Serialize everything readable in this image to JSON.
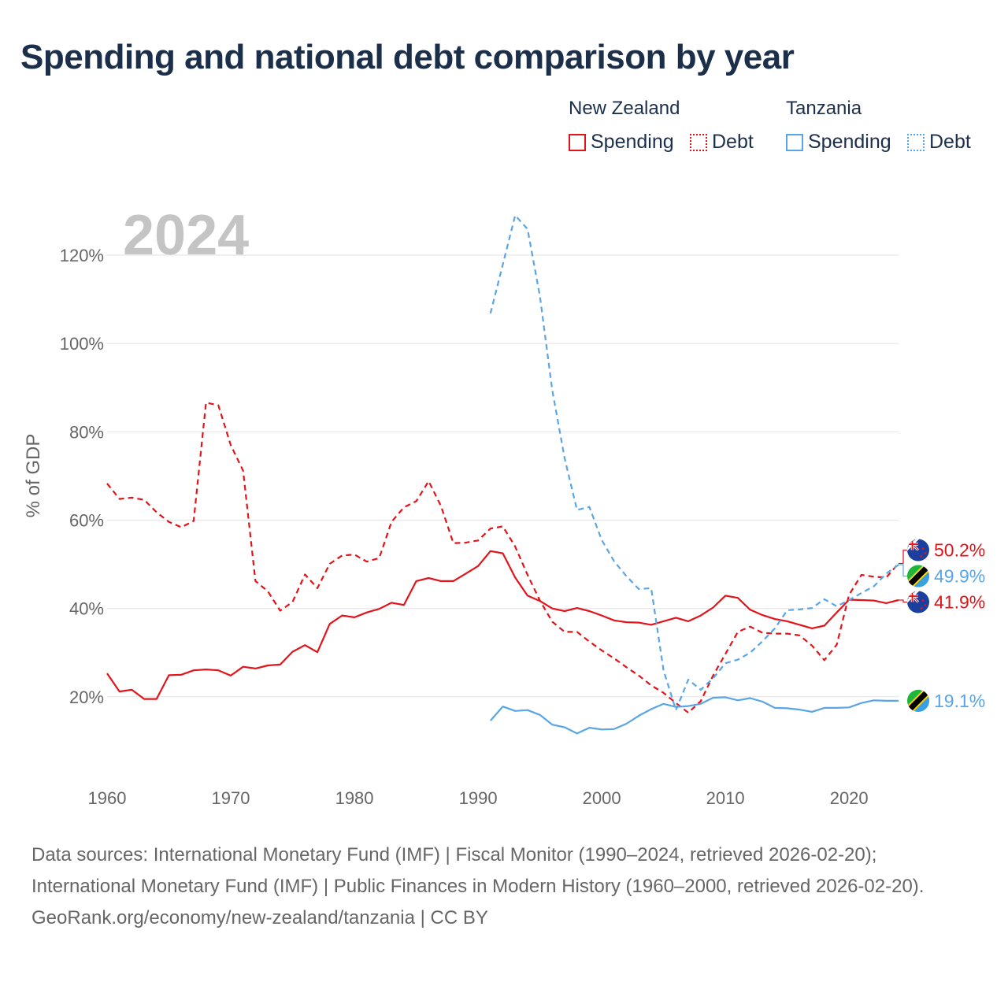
{
  "title": "Spending and national debt comparison by year",
  "legend": {
    "groups": [
      {
        "country": "New Zealand",
        "color": "#e3131a",
        "items": [
          {
            "label": "Spending",
            "style": "solid"
          },
          {
            "label": "Debt",
            "style": "dotted"
          }
        ]
      },
      {
        "country": "Tanzania",
        "color": "#5aa5e6",
        "items": [
          {
            "label": "Spending",
            "style": "solid"
          },
          {
            "label": "Debt",
            "style": "dotted"
          }
        ]
      }
    ]
  },
  "chart_data": {
    "type": "line",
    "year_label": "2024",
    "ylabel": "% of GDP",
    "xlim": [
      1960,
      2024
    ],
    "ylim": [
      0,
      130
    ],
    "x_ticks": [
      1960,
      1970,
      1980,
      1990,
      2000,
      2010,
      2020
    ],
    "y_ticks": [
      {
        "value": 20,
        "label": "20%"
      },
      {
        "value": 40,
        "label": "40%"
      },
      {
        "value": 60,
        "label": "60%"
      },
      {
        "value": 80,
        "label": "80%"
      },
      {
        "value": 100,
        "label": "100%"
      },
      {
        "value": 120,
        "label": "120%"
      }
    ],
    "series": [
      {
        "name": "New Zealand Spending",
        "color": "#e3131a",
        "dash": "solid",
        "x": [
          1960,
          1961,
          1962,
          1963,
          1964,
          1965,
          1966,
          1967,
          1968,
          1969,
          1970,
          1971,
          1972,
          1973,
          1974,
          1975,
          1976,
          1977,
          1978,
          1979,
          1980,
          1981,
          1982,
          1983,
          1984,
          1985,
          1986,
          1987,
          1988,
          1989,
          1990,
          1991,
          1992,
          1993,
          1994,
          1995,
          1996,
          1997,
          1998,
          1999,
          2000,
          2001,
          2002,
          2003,
          2004,
          2005,
          2006,
          2007,
          2008,
          2009,
          2010,
          2011,
          2012,
          2013,
          2014,
          2015,
          2016,
          2017,
          2018,
          2019,
          2020,
          2021,
          2022,
          2023,
          2024
        ],
        "values": [
          25.3,
          21.2,
          21.6,
          19.5,
          19.5,
          24.9,
          25.0,
          26.0,
          26.2,
          26.0,
          24.8,
          26.8,
          26.4,
          27.1,
          27.3,
          30.2,
          31.7,
          30.1,
          36.5,
          38.4,
          38.0,
          39.1,
          39.9,
          41.3,
          40.8,
          46.2,
          46.9,
          46.2,
          46.2,
          47.9,
          49.6,
          53.0,
          52.5,
          47.0,
          42.9,
          41.7,
          40.0,
          39.4,
          40.1,
          39.4,
          38.4,
          37.3,
          36.9,
          36.8,
          36.3,
          37.1,
          37.9,
          37.1,
          38.4,
          40.2,
          42.9,
          42.4,
          39.7,
          38.5,
          37.6,
          37.1,
          36.3,
          35.5,
          36.1,
          39.1,
          42.0,
          41.9,
          41.8,
          41.2,
          41.9
        ],
        "end_label": "41.9%",
        "flag": "nz"
      },
      {
        "name": "New Zealand Debt",
        "color": "#e3131a",
        "dash": "dashed",
        "x": [
          1960,
          1961,
          1962,
          1963,
          1964,
          1965,
          1966,
          1967,
          1968,
          1969,
          1970,
          1971,
          1972,
          1973,
          1974,
          1975,
          1976,
          1977,
          1978,
          1979,
          1980,
          1981,
          1982,
          1983,
          1984,
          1985,
          1986,
          1987,
          1988,
          1989,
          1990,
          1991,
          1992,
          1993,
          1994,
          1995,
          1996,
          1997,
          1998,
          1999,
          2000,
          2001,
          2002,
          2003,
          2004,
          2005,
          2006,
          2007,
          2008,
          2009,
          2010,
          2011,
          2012,
          2013,
          2014,
          2015,
          2016,
          2017,
          2018,
          2019,
          2020,
          2021,
          2022,
          2023,
          2024
        ],
        "values": [
          68.3,
          64.8,
          65.1,
          64.6,
          61.8,
          59.6,
          58.4,
          59.8,
          86.6,
          86.0,
          77.0,
          71.2,
          46.2,
          43.9,
          39.5,
          41.5,
          47.7,
          44.6,
          50.1,
          52.0,
          52.2,
          50.6,
          51.4,
          59.6,
          62.9,
          64.3,
          68.8,
          63.2,
          54.8,
          54.9,
          55.4,
          58.1,
          58.6,
          54.0,
          47.6,
          41.8,
          37.0,
          34.7,
          34.7,
          32.5,
          30.5,
          28.7,
          26.7,
          24.8,
          22.6,
          20.9,
          18.6,
          16.4,
          19.0,
          24.8,
          29.7,
          34.7,
          35.9,
          34.5,
          34.3,
          34.3,
          33.9,
          31.6,
          28.3,
          31.8,
          43.1,
          47.6,
          47.2,
          47.0,
          50.2
        ],
        "end_label": "50.2%",
        "flag": "nz"
      },
      {
        "name": "Tanzania Debt",
        "color": "#5aa5e6",
        "dash": "dashed",
        "x": [
          1991,
          1992,
          1993,
          1994,
          1995,
          1996,
          1997,
          1998,
          1999,
          2000,
          2001,
          2002,
          2003,
          2004,
          2005,
          2006,
          2007,
          2008,
          2009,
          2010,
          2011,
          2012,
          2013,
          2014,
          2015,
          2016,
          2017,
          2018,
          2019,
          2020,
          2021,
          2022,
          2023,
          2024
        ],
        "values": [
          106.8,
          117.9,
          129.0,
          125.9,
          110.7,
          89.4,
          74.0,
          62.3,
          63.0,
          55.5,
          50.7,
          47.3,
          44.4,
          44.6,
          26.0,
          17.0,
          23.9,
          21.6,
          24.2,
          27.6,
          28.4,
          30.0,
          32.6,
          35.5,
          39.6,
          39.8,
          40.1,
          42.1,
          40.5,
          41.9,
          43.5,
          45.0,
          47.9,
          49.9
        ],
        "end_label": "49.9%",
        "flag": "tz"
      },
      {
        "name": "Tanzania Spending",
        "color": "#5aa5e6",
        "dash": "solid",
        "x": [
          1991,
          1992,
          1993,
          1994,
          1995,
          1996,
          1997,
          1998,
          1999,
          2000,
          2001,
          2002,
          2003,
          2004,
          2005,
          2006,
          2007,
          2008,
          2009,
          2010,
          2011,
          2012,
          2013,
          2014,
          2015,
          2016,
          2017,
          2018,
          2019,
          2020,
          2021,
          2022,
          2023,
          2024
        ],
        "values": [
          14.6,
          17.8,
          16.8,
          17.0,
          15.9,
          13.7,
          13.1,
          11.7,
          13.0,
          12.6,
          12.7,
          13.9,
          15.7,
          17.2,
          18.4,
          17.7,
          17.9,
          18.4,
          19.8,
          19.9,
          19.2,
          19.7,
          18.9,
          17.5,
          17.4,
          17.1,
          16.6,
          17.5,
          17.5,
          17.6,
          18.6,
          19.2,
          19.1,
          19.1
        ],
        "end_label": "19.1%",
        "flag": "tz"
      }
    ]
  },
  "footer": {
    "sources": "Data sources: International Monetary Fund (IMF) | Fiscal Monitor (1990–2024, retrieved 2026-02-20); International Monetary Fund (IMF) | Public Finances in Modern History (1960–2000, retrieved 2026-02-20).",
    "credit": "GeoRank.org/economy/new-zealand/tanzania | CC BY"
  }
}
